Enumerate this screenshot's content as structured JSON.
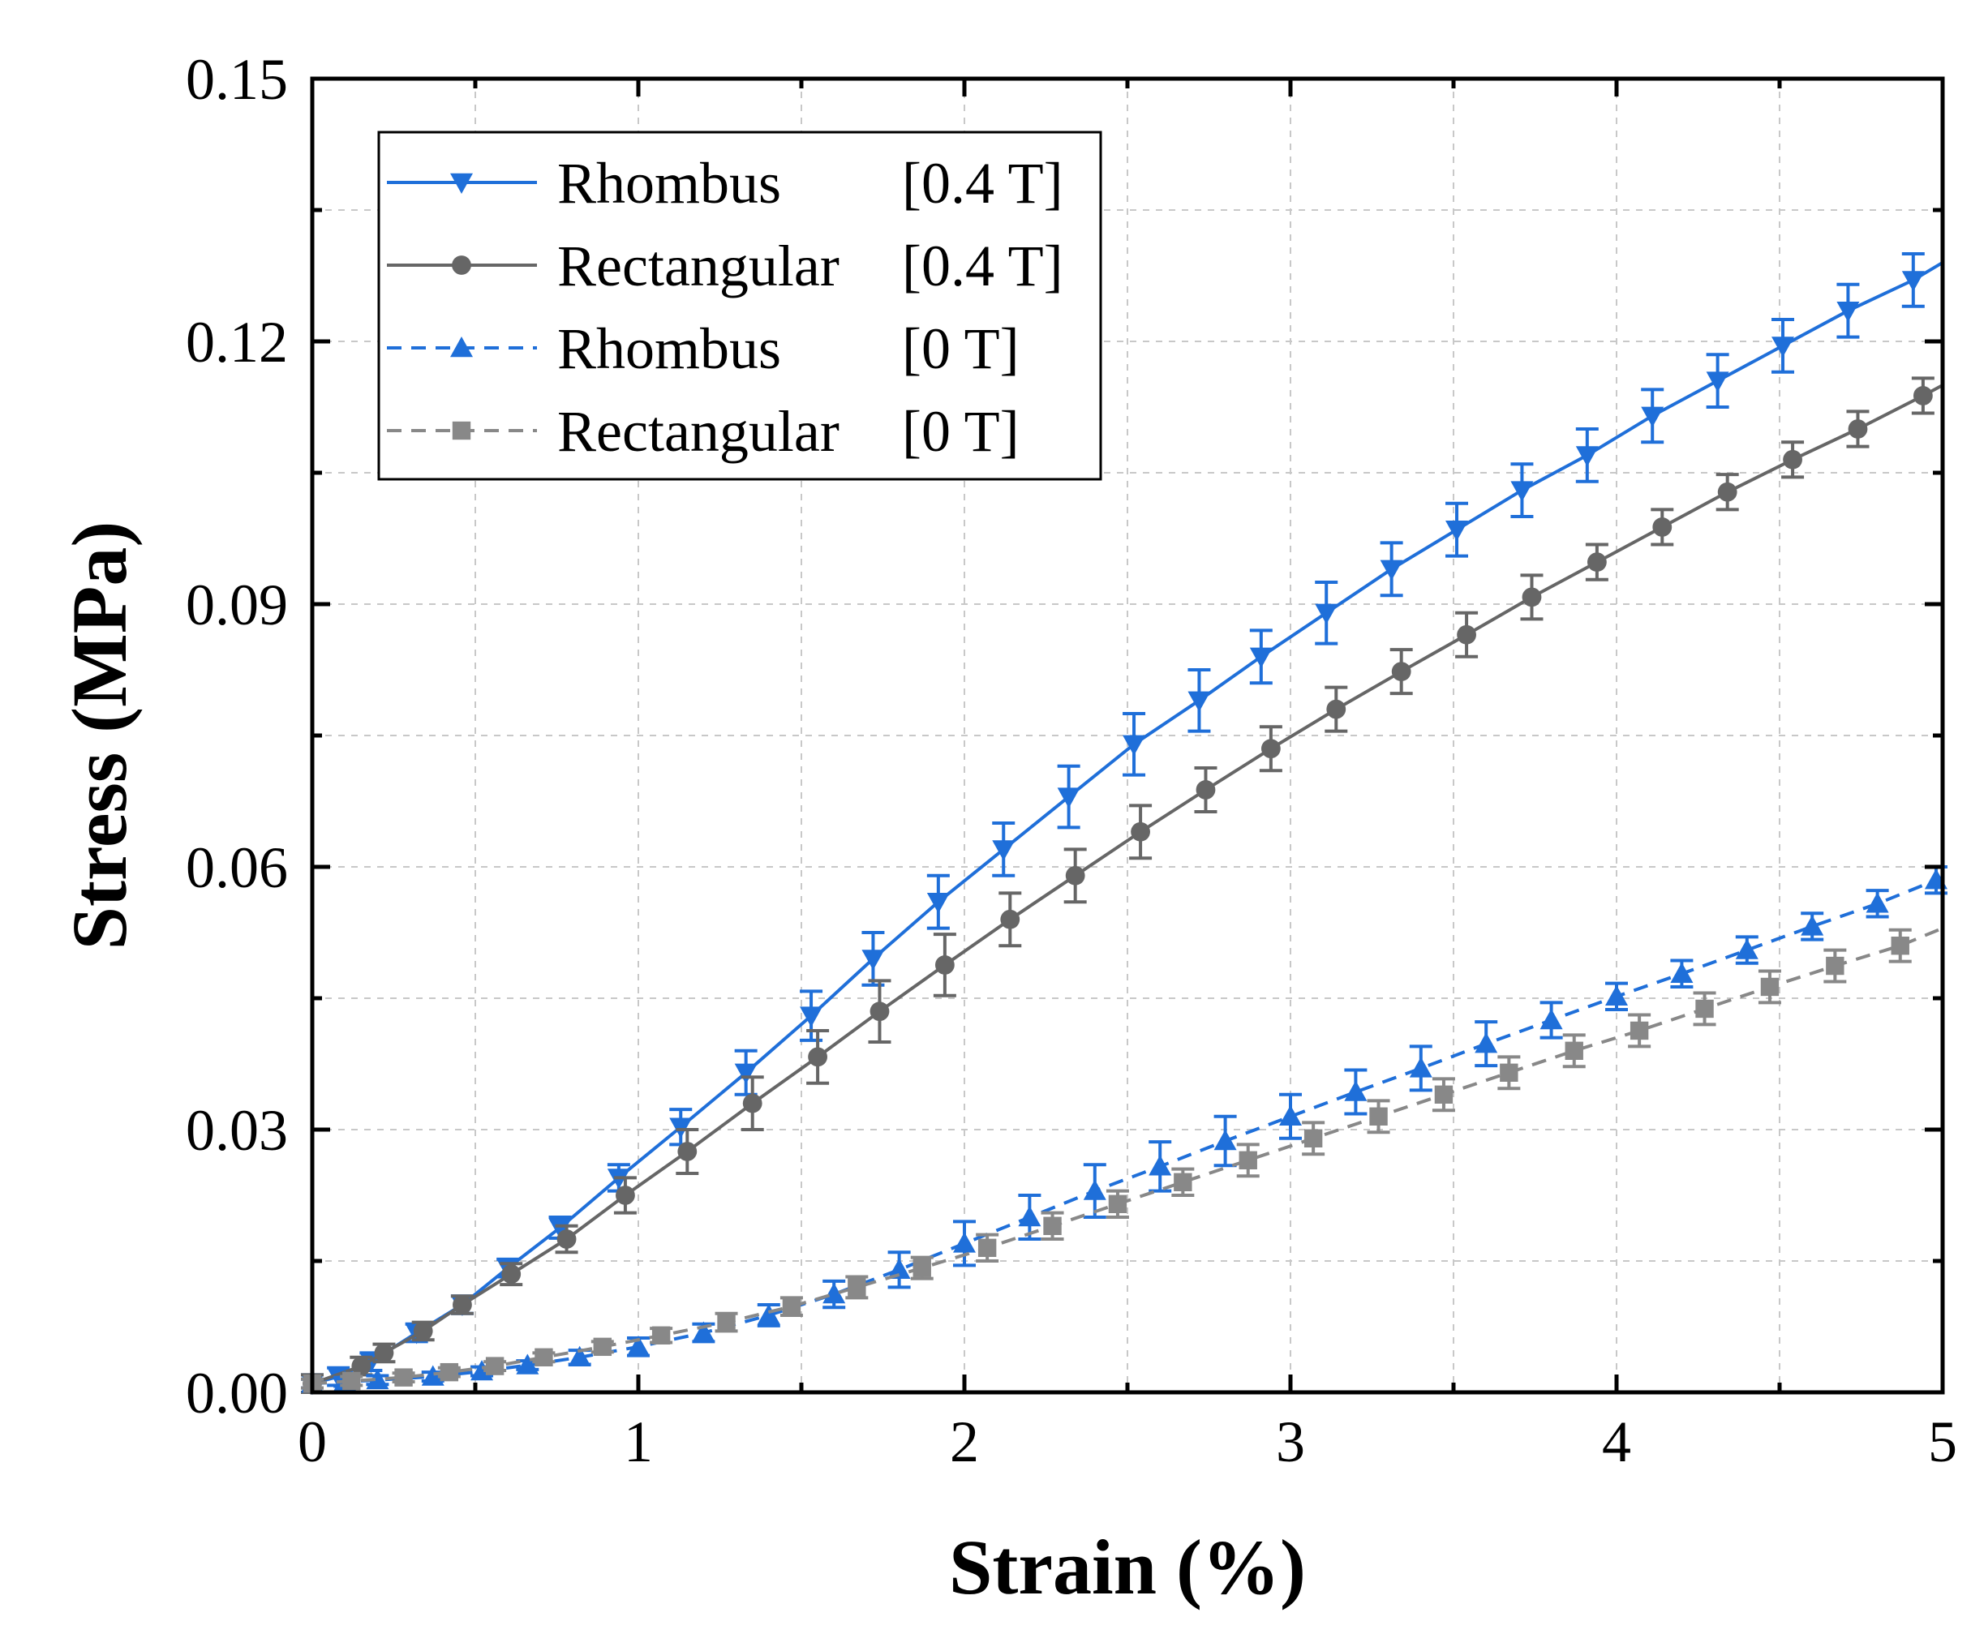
{
  "chart_data": {
    "type": "line",
    "xlabel": "Strain (%)",
    "ylabel": "Stress (MPa)",
    "xlim": [
      0,
      5
    ],
    "ylim": [
      0,
      0.15
    ],
    "grid": true,
    "legend_position": "top-left",
    "x_ticks": [
      "0",
      "1",
      "2",
      "3",
      "4",
      "5"
    ],
    "y_ticks": [
      "0.00",
      "0.03",
      "0.06",
      "0.09",
      "0.12",
      "0.15"
    ],
    "x_tick_values": [
      0,
      1,
      2,
      3,
      4,
      5
    ],
    "y_tick_values": [
      0,
      0.03,
      0.06,
      0.09,
      0.12,
      0.15
    ],
    "series": [
      {
        "name": "Rhombus",
        "condition": "[0.4 T]",
        "color": "#1f6fd9",
        "line_style": "solid",
        "marker": "triangle-down",
        "x": [
          0.0,
          0.08,
          0.18,
          0.32,
          0.46,
          0.6,
          0.76,
          0.94,
          1.13,
          1.33,
          1.53,
          1.72,
          1.92,
          2.12,
          2.32,
          2.52,
          2.72,
          2.91,
          3.11,
          3.31,
          3.51,
          3.71,
          3.91,
          4.11,
          4.31,
          4.51,
          4.71,
          4.91,
          5.0
        ],
        "y": [
          0.001,
          0.0018,
          0.0035,
          0.0068,
          0.01,
          0.0142,
          0.0188,
          0.0245,
          0.0303,
          0.0365,
          0.043,
          0.0495,
          0.056,
          0.062,
          0.068,
          0.074,
          0.079,
          0.084,
          0.089,
          0.094,
          0.0985,
          0.103,
          0.107,
          0.1115,
          0.1155,
          0.1195,
          0.1235,
          0.127,
          0.129
        ],
        "err": [
          0.001,
          0.001,
          0.001,
          0.001,
          0.001,
          0.001,
          0.0012,
          0.0015,
          0.002,
          0.0025,
          0.0028,
          0.003,
          0.003,
          0.003,
          0.0035,
          0.0035,
          0.0035,
          0.003,
          0.0035,
          0.003,
          0.003,
          0.003,
          0.003,
          0.003,
          0.003,
          0.003,
          0.003,
          0.003,
          0
        ]
      },
      {
        "name": "Rectangular",
        "condition": "[0.4 T]",
        "color": "#666666",
        "line_style": "solid",
        "marker": "circle",
        "x": [
          0.0,
          0.15,
          0.22,
          0.34,
          0.46,
          0.61,
          0.78,
          0.96,
          1.15,
          1.35,
          1.55,
          1.74,
          1.94,
          2.14,
          2.34,
          2.54,
          2.74,
          2.94,
          3.14,
          3.34,
          3.54,
          3.74,
          3.94,
          4.14,
          4.34,
          4.54,
          4.74,
          4.94,
          5.0
        ],
        "y": [
          0.001,
          0.003,
          0.0045,
          0.007,
          0.01,
          0.0135,
          0.0175,
          0.0225,
          0.0275,
          0.033,
          0.0383,
          0.0435,
          0.0488,
          0.054,
          0.059,
          0.064,
          0.0688,
          0.0735,
          0.078,
          0.0823,
          0.0865,
          0.0908,
          0.0948,
          0.0988,
          0.1028,
          0.1065,
          0.11,
          0.1138,
          0.115
        ],
        "err": [
          0.001,
          0.001,
          0.001,
          0.001,
          0.001,
          0.0012,
          0.0015,
          0.002,
          0.0025,
          0.003,
          0.003,
          0.0035,
          0.0035,
          0.003,
          0.003,
          0.003,
          0.0025,
          0.0025,
          0.0025,
          0.0025,
          0.0025,
          0.0025,
          0.002,
          0.002,
          0.002,
          0.002,
          0.002,
          0.002,
          0
        ]
      },
      {
        "name": "Rhombus",
        "condition": "[0 T]",
        "color": "#1f6fd9",
        "line_style": "dashed",
        "marker": "triangle-up",
        "x": [
          0.0,
          0.1,
          0.2,
          0.37,
          0.52,
          0.66,
          0.82,
          1.0,
          1.2,
          1.4,
          1.6,
          1.8,
          2.0,
          2.2,
          2.4,
          2.6,
          2.8,
          3.0,
          3.2,
          3.4,
          3.6,
          3.8,
          4.0,
          4.2,
          4.4,
          4.6,
          4.8,
          4.98
        ],
        "y": [
          0.001,
          0.0012,
          0.0014,
          0.0018,
          0.0024,
          0.0031,
          0.004,
          0.0052,
          0.0068,
          0.0088,
          0.0112,
          0.014,
          0.017,
          0.02,
          0.023,
          0.0258,
          0.0287,
          0.0315,
          0.0343,
          0.037,
          0.0398,
          0.0425,
          0.0452,
          0.0478,
          0.0505,
          0.0532,
          0.0558,
          0.0585
        ],
        "err": [
          0.0005,
          0.0005,
          0.0005,
          0.0005,
          0.0005,
          0.0005,
          0.0008,
          0.001,
          0.001,
          0.0012,
          0.0015,
          0.002,
          0.0025,
          0.0025,
          0.003,
          0.0028,
          0.0028,
          0.0025,
          0.0025,
          0.0025,
          0.0025,
          0.002,
          0.0015,
          0.0015,
          0.0015,
          0.0015,
          0.0015,
          0.0015
        ]
      },
      {
        "name": "Rectangular",
        "condition": "[0 T]",
        "color": "#888888",
        "line_style": "dashed",
        "marker": "square",
        "x": [
          0.0,
          0.12,
          0.28,
          0.42,
          0.56,
          0.71,
          0.89,
          1.07,
          1.27,
          1.47,
          1.67,
          1.87,
          2.07,
          2.27,
          2.47,
          2.67,
          2.87,
          3.07,
          3.27,
          3.47,
          3.67,
          3.87,
          4.07,
          4.27,
          4.47,
          4.67,
          4.87,
          5.0
        ],
        "y": [
          0.001,
          0.0013,
          0.0017,
          0.0023,
          0.003,
          0.004,
          0.0052,
          0.0065,
          0.008,
          0.0098,
          0.012,
          0.0142,
          0.0165,
          0.019,
          0.0215,
          0.024,
          0.0265,
          0.029,
          0.0315,
          0.034,
          0.0365,
          0.039,
          0.0413,
          0.0438,
          0.0463,
          0.0487,
          0.051,
          0.053
        ],
        "err": [
          0.0005,
          0.0005,
          0.0005,
          0.0005,
          0.0005,
          0.0005,
          0.0006,
          0.0008,
          0.001,
          0.001,
          0.0012,
          0.0012,
          0.0015,
          0.0015,
          0.0015,
          0.0015,
          0.0018,
          0.0018,
          0.0018,
          0.0018,
          0.0018,
          0.0018,
          0.0018,
          0.0018,
          0.0018,
          0.0018,
          0.0018,
          0
        ]
      }
    ]
  }
}
